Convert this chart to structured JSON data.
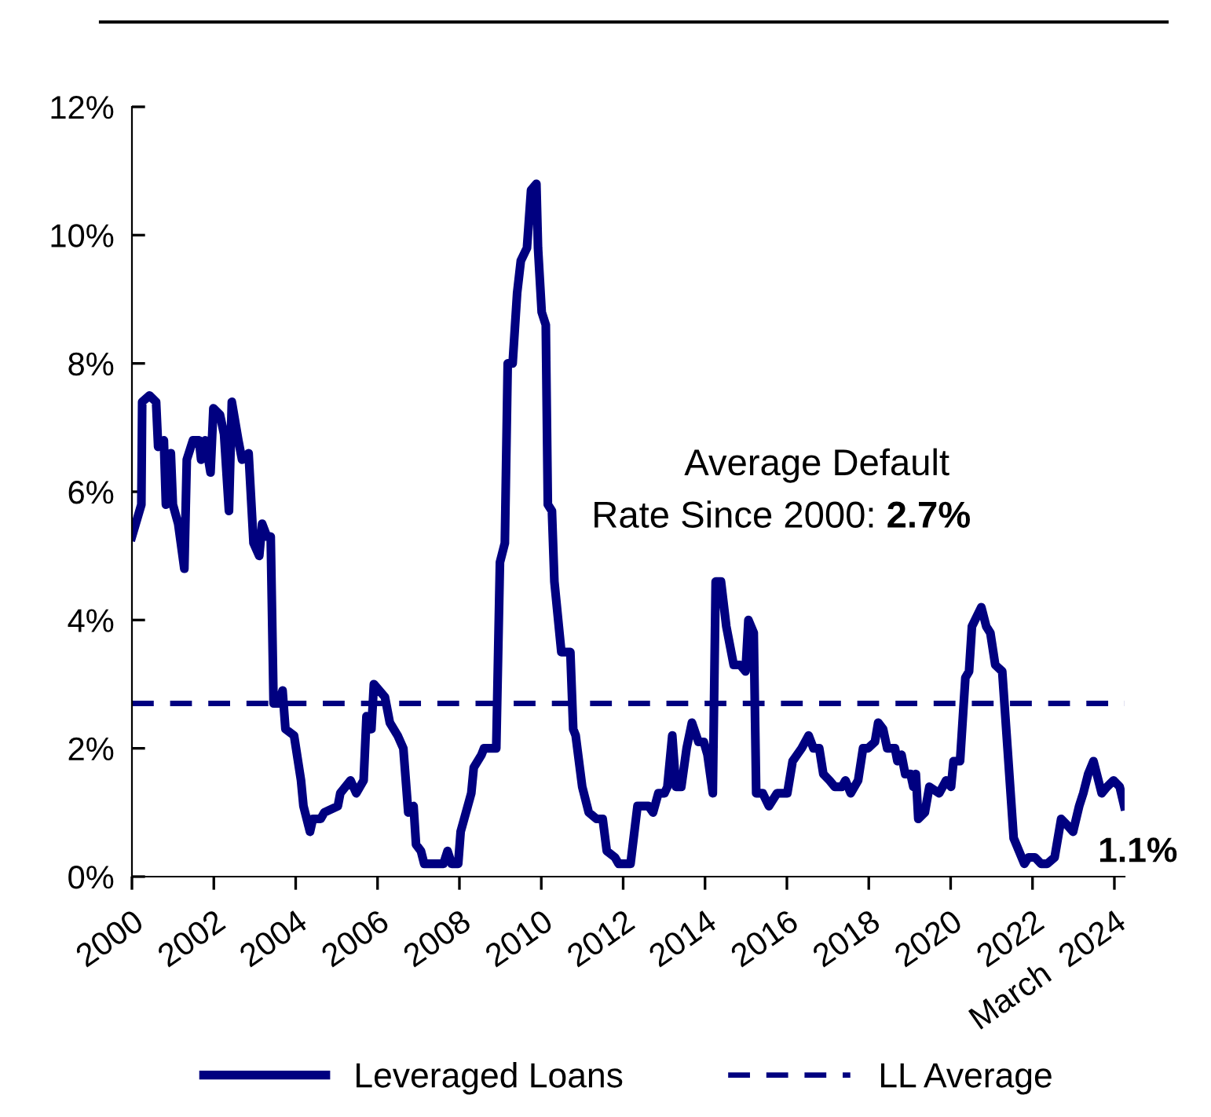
{
  "chart_data": {
    "type": "line",
    "x": [
      2000.0,
      2000.23,
      2000.25,
      2000.43,
      2000.59,
      2000.64,
      2000.78,
      2000.83,
      2000.95,
      2001.0,
      2001.13,
      2001.28,
      2001.34,
      2001.49,
      2001.64,
      2001.69,
      2001.79,
      2001.92,
      2001.99,
      2002.15,
      2002.25,
      2002.37,
      2002.44,
      2002.6,
      2002.69,
      2002.85,
      2002.97,
      2003.11,
      2003.18,
      2003.3,
      2003.39,
      2003.46,
      2003.58,
      2003.68,
      2003.75,
      2003.96,
      2004.13,
      2004.19,
      2004.35,
      2004.42,
      2004.61,
      2004.7,
      2005.03,
      2005.09,
      2005.34,
      2005.48,
      2005.66,
      2005.73,
      2005.85,
      2005.91,
      2006.18,
      2006.3,
      2006.49,
      2006.63,
      2006.75,
      2006.88,
      2006.94,
      2007.06,
      2007.14,
      2007.39,
      2007.61,
      2007.71,
      2007.81,
      2007.97,
      2008.03,
      2008.29,
      2008.35,
      2008.54,
      2008.6,
      2008.73,
      2008.9,
      2008.99,
      2009.11,
      2009.18,
      2009.3,
      2009.41,
      2009.5,
      2009.65,
      2009.75,
      2009.88,
      2009.92,
      2010.01,
      2010.11,
      2010.16,
      2010.26,
      2010.32,
      2010.49,
      2010.71,
      2010.78,
      2010.84,
      2011.0,
      2011.16,
      2011.35,
      2011.5,
      2011.6,
      2011.8,
      2011.89,
      2012.18,
      2012.35,
      2012.62,
      2012.73,
      2012.86,
      2013.01,
      2013.08,
      2013.2,
      2013.29,
      2013.42,
      2013.55,
      2013.68,
      2013.84,
      2013.97,
      2014.06,
      2014.19,
      2014.26,
      2014.39,
      2014.52,
      2014.7,
      2014.86,
      2014.99,
      2015.06,
      2015.19,
      2015.25,
      2015.41,
      2015.56,
      2015.76,
      2015.89,
      2016.01,
      2016.14,
      2016.36,
      2016.53,
      2016.65,
      2016.79,
      2016.89,
      2017.04,
      2017.17,
      2017.34,
      2017.43,
      2017.56,
      2017.74,
      2017.86,
      2017.98,
      2018.15,
      2018.23,
      2018.35,
      2018.45,
      2018.64,
      2018.7,
      2018.8,
      2018.89,
      2019.02,
      2019.09,
      2019.15,
      2019.21,
      2019.37,
      2019.48,
      2019.72,
      2019.89,
      2020.01,
      2020.07,
      2020.23,
      2020.36,
      2020.45,
      2020.52,
      2020.75,
      2020.87,
      2020.97,
      2021.09,
      2021.26,
      2021.39,
      2021.54,
      2021.67,
      2021.8,
      2021.9,
      2022.06,
      2022.21,
      2022.36,
      2022.54,
      2022.7,
      2022.85,
      2022.99,
      2023.14,
      2023.24,
      2023.36,
      2023.49,
      2023.69,
      2023.82,
      2023.98,
      2024.13,
      2024.24
    ],
    "series": [
      {
        "name": "Leveraged Loans",
        "color": "#000080",
        "values": [
          5.3,
          5.8,
          7.4,
          7.5,
          7.4,
          6.7,
          6.8,
          5.8,
          6.6,
          5.8,
          5.5,
          4.8,
          6.5,
          6.8,
          6.8,
          6.5,
          6.8,
          6.3,
          7.3,
          7.2,
          6.9,
          5.7,
          7.4,
          6.8,
          6.5,
          6.6,
          5.2,
          5.0,
          5.5,
          5.3,
          5.3,
          2.7,
          2.7,
          2.9,
          2.3,
          2.2,
          1.5,
          1.1,
          0.7,
          0.9,
          0.9,
          1.0,
          1.1,
          1.3,
          1.5,
          1.3,
          1.5,
          2.5,
          2.3,
          3.0,
          2.8,
          2.4,
          2.2,
          2.0,
          1.0,
          1.1,
          0.5,
          0.4,
          0.2,
          0.2,
          0.2,
          0.4,
          0.2,
          0.2,
          0.7,
          1.3,
          1.7,
          1.9,
          2.0,
          2.0,
          2.0,
          4.9,
          5.2,
          8.0,
          8.0,
          9.1,
          9.6,
          9.8,
          10.7,
          10.8,
          9.8,
          8.8,
          8.6,
          5.8,
          5.7,
          4.6,
          3.5,
          3.5,
          2.3,
          2.2,
          1.4,
          1.0,
          0.9,
          0.9,
          0.4,
          0.3,
          0.2,
          0.2,
          1.1,
          1.1,
          1.0,
          1.3,
          1.3,
          1.4,
          2.2,
          1.4,
          1.4,
          2.0,
          2.4,
          2.1,
          2.1,
          1.9,
          1.3,
          4.6,
          4.6,
          3.9,
          3.3,
          3.3,
          3.2,
          4.0,
          3.8,
          1.3,
          1.3,
          1.1,
          1.3,
          1.3,
          1.3,
          1.8,
          2.0,
          2.2,
          2.0,
          2.0,
          1.6,
          1.5,
          1.4,
          1.4,
          1.5,
          1.3,
          1.5,
          2.0,
          2.0,
          2.1,
          2.4,
          2.3,
          2.0,
          2.0,
          1.8,
          1.9,
          1.6,
          1.6,
          1.4,
          1.6,
          0.9,
          1.0,
          1.4,
          1.3,
          1.5,
          1.4,
          1.8,
          1.8,
          3.1,
          3.2,
          3.9,
          4.2,
          3.9,
          3.8,
          3.3,
          3.2,
          2.0,
          0.6,
          0.4,
          0.2,
          0.3,
          0.3,
          0.2,
          0.2,
          0.3,
          0.9,
          0.8,
          0.7,
          1.1,
          1.3,
          1.6,
          1.8,
          1.3,
          1.4,
          1.5,
          1.4,
          1.1
        ]
      }
    ],
    "ref_lines": [
      {
        "axis": "y",
        "value": 2.7,
        "label": "LL Average",
        "color": "#000080",
        "line_style": "dashed"
      }
    ],
    "xlim": [
      2000,
      2024.25
    ],
    "xticks": [
      2000,
      2002,
      2004,
      2006,
      2008,
      2010,
      2012,
      2014,
      2016,
      2018,
      2020,
      2022,
      {
        "value": 2024,
        "label": "March  2024"
      }
    ],
    "ylim": [
      0,
      12
    ],
    "yticks": [
      {
        "value": 0,
        "label": "0%"
      },
      {
        "value": 2,
        "label": "2%"
      },
      {
        "value": 4,
        "label": "4%"
      },
      {
        "value": 6,
        "label": "6%"
      },
      {
        "value": 8,
        "label": "8%"
      },
      {
        "value": 10,
        "label": "10%"
      },
      {
        "value": 12,
        "label": "12%"
      }
    ],
    "annotations": [
      "Average Default\nRate Since 2000: 2.7%",
      {
        "text": "1.1%",
        "x": 2024.24,
        "y": 1.1
      }
    ],
    "grid": false,
    "legend": "bottom",
    "marker": "none",
    "line_style": "solid"
  }
}
